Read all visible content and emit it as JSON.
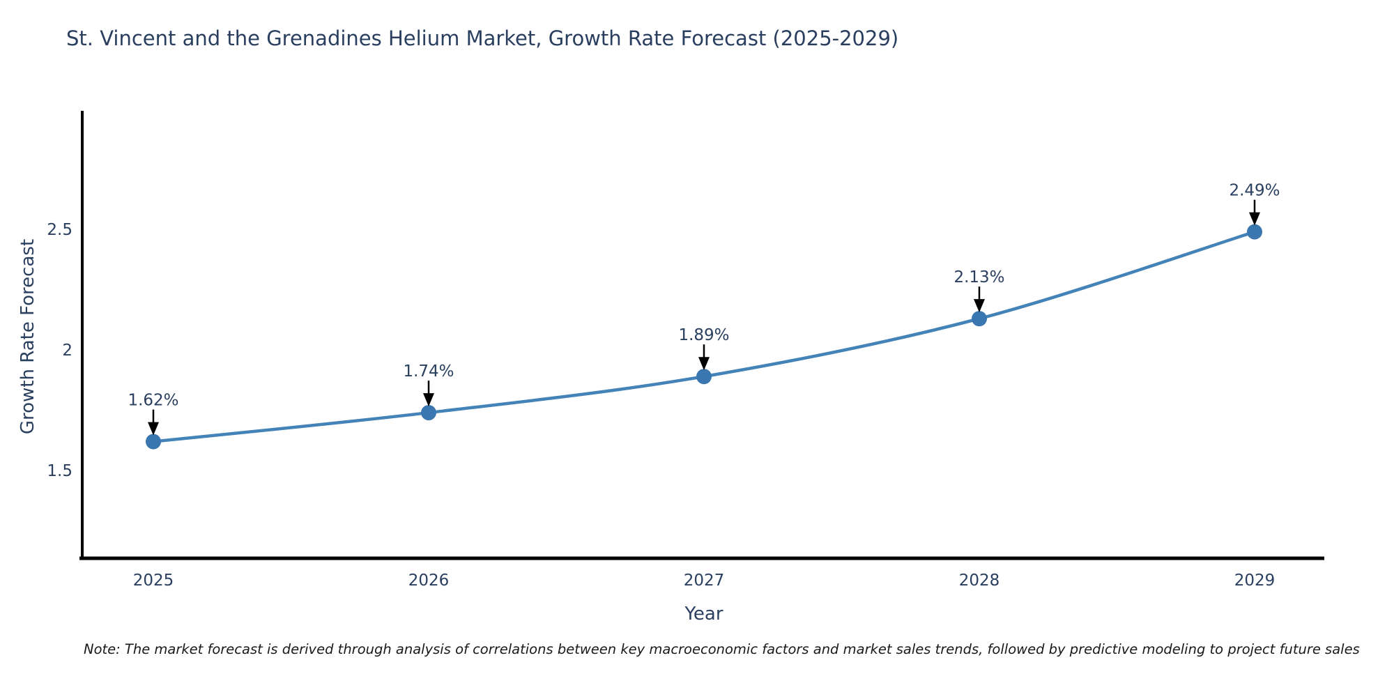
{
  "title": "St. Vincent and the Grenadines Helium Market, Growth Rate Forecast (2025-2029)",
  "note": "Note: The market forecast is derived through analysis of correlations between key macroeconomic factors and market sales trends, followed by predictive modeling to project future sales",
  "chart_data": {
    "type": "line",
    "x": [
      2025,
      2026,
      2027,
      2028,
      2029
    ],
    "values": [
      1.62,
      1.74,
      1.89,
      2.13,
      2.49
    ],
    "point_labels": [
      "1.62%",
      "1.74%",
      "1.89%",
      "2.13%",
      "2.49%"
    ],
    "x_tick_labels": [
      "2025",
      "2026",
      "2027",
      "2028",
      "2029"
    ],
    "y_ticks": [
      1.5,
      2,
      2.5
    ],
    "y_tick_labels": [
      "1.5",
      "2",
      "2.5"
    ],
    "ylim": [
      1.136,
      2.992
    ],
    "xlabel": "Year",
    "ylabel": "Growth Rate Forecast",
    "grid": false,
    "legend": "none",
    "line_color": "#4383b8",
    "marker_color": "#3a77b0",
    "axis_color": "#000000",
    "text_color": "#2a3f5f",
    "annotation_arrow_color": "#000000",
    "background_color": "#ffffff"
  }
}
